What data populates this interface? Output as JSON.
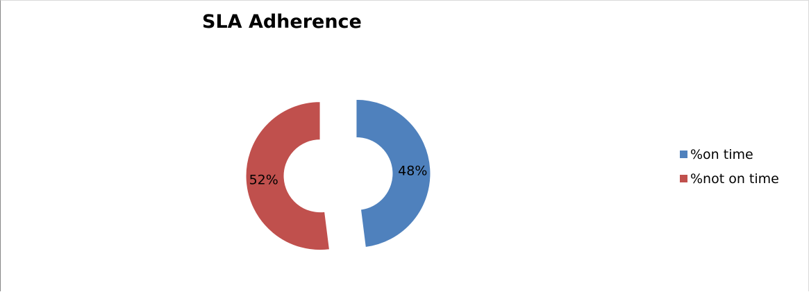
{
  "chart_data": {
    "type": "pie",
    "title": "SLA Adherence",
    "categories": [
      "%on time",
      "%not on time"
    ],
    "values": [
      48,
      52
    ],
    "labels": [
      "48%",
      "52%"
    ],
    "colors": [
      "#4f81bd",
      "#c0504d"
    ],
    "legend_position": "right",
    "style": "exploded doughnut"
  }
}
